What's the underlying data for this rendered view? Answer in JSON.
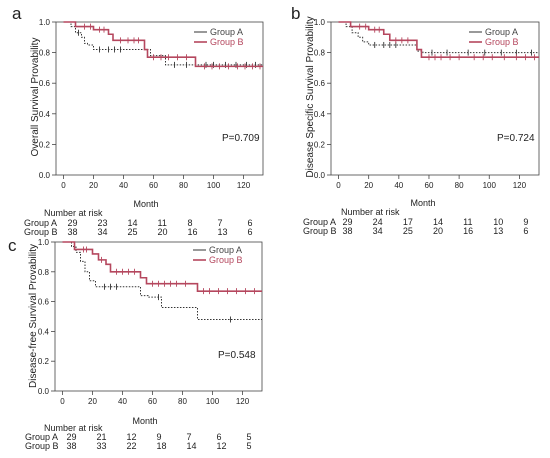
{
  "panels": [
    {
      "letter": "a",
      "ylabel": "Overall Survival Provability",
      "xlabel": "Month",
      "p_value": "P=0.709",
      "risk_title": "Number at risk",
      "risk_groups": [
        "Group A",
        "Group B"
      ],
      "risk_times": [
        0,
        20,
        40,
        60,
        80,
        100,
        120
      ],
      "risk_counts": [
        [
          "29",
          "23",
          "14",
          "11",
          "8",
          "7",
          "6"
        ],
        [
          "38",
          "34",
          "25",
          "20",
          "16",
          "13",
          "6"
        ]
      ]
    },
    {
      "letter": "b",
      "ylabel": "Disease Specific Survival Provability",
      "xlabel": "Month",
      "p_value": "P=0.724",
      "risk_title": "Number at risk",
      "risk_groups": [
        "Group A",
        "Group B"
      ],
      "risk_times": [
        0,
        20,
        40,
        60,
        80,
        100,
        120
      ],
      "risk_counts": [
        [
          "29",
          "24",
          "17",
          "14",
          "11",
          "10",
          "9"
        ],
        [
          "38",
          "34",
          "25",
          "20",
          "16",
          "13",
          "6"
        ]
      ]
    },
    {
      "letter": "c",
      "ylabel": "Disease-free Survival Provability",
      "xlabel": "Month",
      "p_value": "P=0.548",
      "risk_title": "Number at risk",
      "risk_groups": [
        "Group A",
        "Group B"
      ],
      "risk_times": [
        0,
        20,
        40,
        60,
        80,
        100,
        120
      ],
      "risk_counts": [
        [
          "29",
          "21",
          "12",
          "9",
          "7",
          "6",
          "5"
        ],
        [
          "38",
          "33",
          "22",
          "18",
          "14",
          "12",
          "5"
        ]
      ]
    }
  ],
  "colors": {
    "group_a": "#333333",
    "group_b": "#b5475e",
    "axis": "#444444",
    "text": "#222222"
  },
  "chart_data": [
    {
      "type": "line",
      "title": "",
      "xlabel": "Month",
      "ylabel": "Overall Survival Provability",
      "xlim": [
        -5,
        133
      ],
      "ylim": [
        0,
        1
      ],
      "xticks": [
        0,
        20,
        40,
        60,
        80,
        100,
        120
      ],
      "yticks": [
        0.0,
        0.2,
        0.4,
        0.6,
        0.8,
        1.0
      ],
      "legend_position": "top-right",
      "annotation": "P=0.709",
      "series": [
        {
          "name": "Group A",
          "style": "dotted",
          "x": [
            0,
            5,
            8,
            12,
            14,
            16,
            20,
            58,
            68,
            133
          ],
          "y": [
            1.0,
            0.97,
            0.93,
            0.9,
            0.86,
            0.85,
            0.82,
            0.78,
            0.72,
            0.72
          ],
          "censor_x": [
            10,
            24,
            30,
            34,
            38,
            74,
            82,
            95,
            100,
            108,
            115,
            122,
            128
          ],
          "censor_y": [
            0.93,
            0.82,
            0.82,
            0.82,
            0.82,
            0.72,
            0.72,
            0.72,
            0.72,
            0.72,
            0.72,
            0.72,
            0.72
          ]
        },
        {
          "name": "Group B",
          "style": "solid",
          "x": [
            0,
            8,
            20,
            30,
            33,
            54,
            56,
            88,
            133
          ],
          "y": [
            1.0,
            0.97,
            0.95,
            0.92,
            0.88,
            0.82,
            0.77,
            0.71,
            0.71
          ],
          "censor_x": [
            14,
            18,
            24,
            27,
            38,
            43,
            47,
            50,
            60,
            65,
            70,
            76,
            82,
            94,
            99,
            104,
            110,
            116,
            121,
            126,
            131
          ],
          "censor_y": [
            0.97,
            0.97,
            0.95,
            0.95,
            0.88,
            0.88,
            0.88,
            0.88,
            0.77,
            0.77,
            0.77,
            0.77,
            0.77,
            0.71,
            0.71,
            0.71,
            0.71,
            0.71,
            0.71,
            0.71,
            0.71
          ]
        }
      ]
    },
    {
      "type": "line",
      "title": "",
      "xlabel": "Month",
      "ylabel": "Disease Specific Survival Provability",
      "xlim": [
        -5,
        133
      ],
      "ylim": [
        0,
        1
      ],
      "xticks": [
        0,
        20,
        40,
        60,
        80,
        100,
        120
      ],
      "yticks": [
        0.0,
        0.2,
        0.4,
        0.6,
        0.8,
        1.0
      ],
      "legend_position": "top-right",
      "annotation": "P=0.724",
      "series": [
        {
          "name": "Group A",
          "style": "dotted",
          "x": [
            0,
            5,
            9,
            13,
            16,
            20,
            52,
            56,
            133
          ],
          "y": [
            1.0,
            0.97,
            0.93,
            0.9,
            0.87,
            0.85,
            0.81,
            0.8,
            0.8
          ],
          "censor_x": [
            24,
            30,
            34,
            38,
            62,
            72,
            86,
            97,
            108,
            118,
            128
          ],
          "censor_y": [
            0.85,
            0.85,
            0.85,
            0.85,
            0.8,
            0.8,
            0.8,
            0.8,
            0.8,
            0.8,
            0.8
          ]
        },
        {
          "name": "Group B",
          "style": "solid",
          "x": [
            0,
            8,
            20,
            30,
            34,
            52,
            55,
            133
          ],
          "y": [
            1.0,
            0.97,
            0.95,
            0.92,
            0.88,
            0.82,
            0.77,
            0.77
          ],
          "censor_x": [
            14,
            18,
            24,
            27,
            38,
            42,
            46,
            60,
            64,
            68,
            74,
            80,
            90,
            96,
            102,
            110,
            118,
            124,
            130
          ],
          "censor_y": [
            0.97,
            0.97,
            0.95,
            0.95,
            0.88,
            0.88,
            0.88,
            0.77,
            0.77,
            0.77,
            0.77,
            0.77,
            0.77,
            0.77,
            0.77,
            0.77,
            0.77,
            0.77,
            0.77
          ]
        }
      ]
    },
    {
      "type": "line",
      "title": "",
      "xlabel": "Month",
      "ylabel": "Disease-free Survival Provability",
      "xlim": [
        -5,
        133
      ],
      "ylim": [
        0,
        1
      ],
      "xticks": [
        0,
        20,
        40,
        60,
        80,
        100,
        120
      ],
      "yticks": [
        0.0,
        0.2,
        0.4,
        0.6,
        0.8,
        1.0
      ],
      "legend_position": "top-right",
      "annotation": "P=0.548",
      "series": [
        {
          "name": "Group A",
          "style": "dotted",
          "x": [
            0,
            6,
            9,
            12,
            15,
            18,
            22,
            52,
            57,
            66,
            90,
            133
          ],
          "y": [
            1.0,
            0.97,
            0.93,
            0.87,
            0.8,
            0.74,
            0.7,
            0.64,
            0.63,
            0.56,
            0.48,
            0.48
          ],
          "censor_x": [
            28,
            32,
            36,
            64,
            112
          ],
          "censor_y": [
            0.7,
            0.7,
            0.7,
            0.63,
            0.48
          ]
        },
        {
          "name": "Group B",
          "style": "solid",
          "x": [
            0,
            8,
            20,
            24,
            29,
            32,
            52,
            56,
            90,
            133
          ],
          "y": [
            1.0,
            0.95,
            0.92,
            0.88,
            0.85,
            0.8,
            0.76,
            0.72,
            0.67,
            0.67
          ],
          "censor_x": [
            14,
            16,
            26,
            36,
            40,
            44,
            48,
            60,
            64,
            68,
            72,
            76,
            82,
            94,
            98,
            104,
            110,
            116,
            122,
            128
          ],
          "censor_y": [
            0.95,
            0.95,
            0.88,
            0.8,
            0.8,
            0.8,
            0.8,
            0.72,
            0.72,
            0.72,
            0.72,
            0.72,
            0.72,
            0.67,
            0.67,
            0.67,
            0.67,
            0.67,
            0.67,
            0.67
          ]
        }
      ]
    }
  ]
}
